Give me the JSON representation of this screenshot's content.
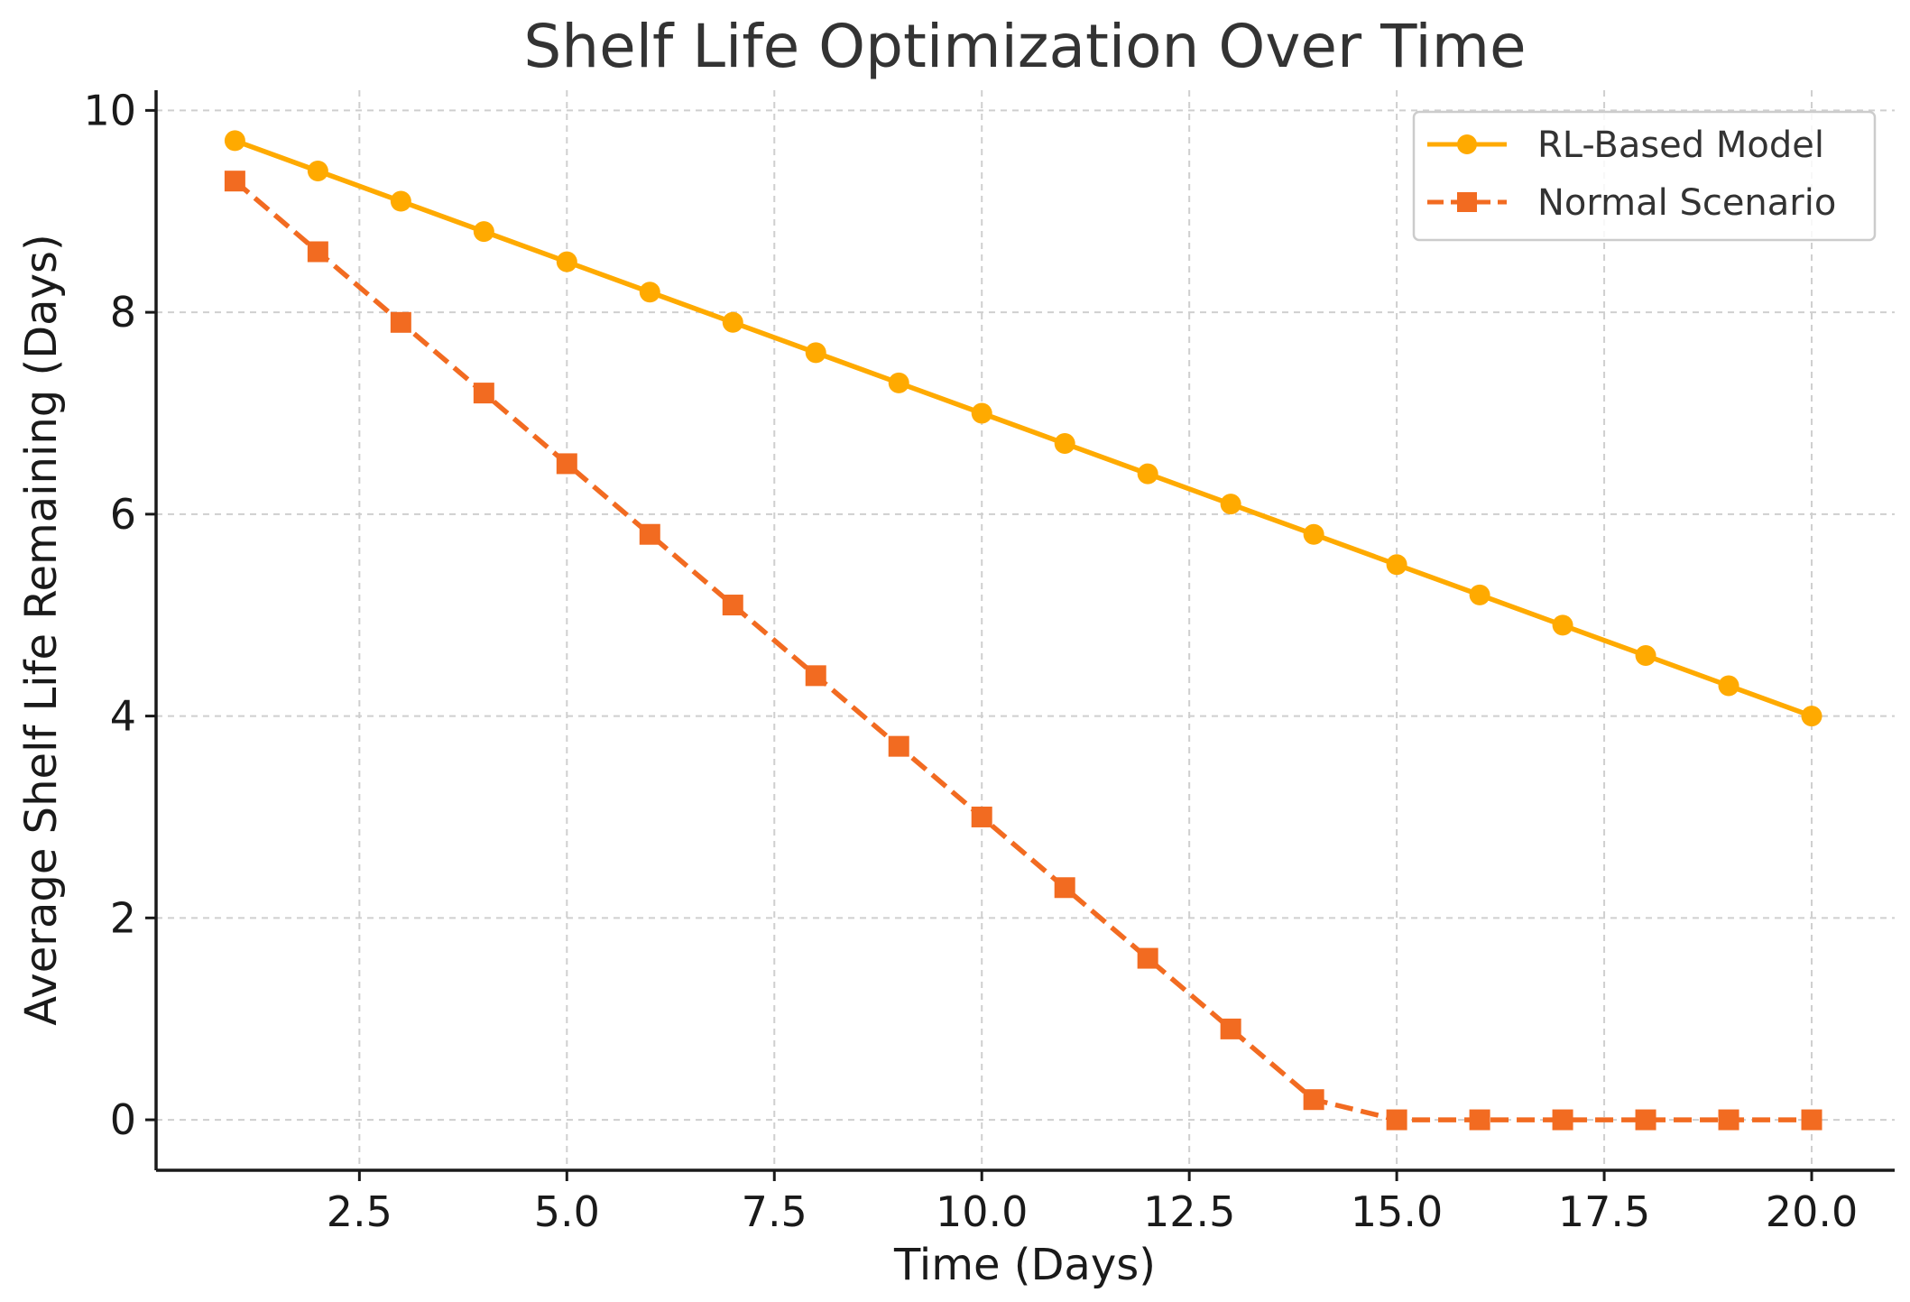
{
  "chart_data": {
    "type": "line",
    "title": "Shelf Life Optimization Over Time",
    "xlabel": "Time (Days)",
    "ylabel": "Average Shelf Life Remaining (Days)",
    "x": [
      1,
      2,
      3,
      4,
      5,
      6,
      7,
      8,
      9,
      10,
      11,
      12,
      13,
      14,
      15,
      16,
      17,
      18,
      19,
      20
    ],
    "xlim": [
      0.05,
      21.0
    ],
    "ylim": [
      -0.5,
      10.2
    ],
    "x_ticks": [
      2.5,
      5.0,
      7.5,
      10.0,
      12.5,
      15.0,
      17.5,
      20.0
    ],
    "x_tick_labels": [
      "2.5",
      "5.0",
      "7.5",
      "10.0",
      "12.5",
      "15.0",
      "17.5",
      "20.0"
    ],
    "y_ticks": [
      0,
      2,
      4,
      6,
      8,
      10
    ],
    "y_tick_labels": [
      "0",
      "2",
      "4",
      "6",
      "8",
      "10"
    ],
    "grid": true,
    "legend_position": "top-right",
    "series": [
      {
        "name": "RL-Based Model",
        "color": "#FFAA00",
        "marker": "circle",
        "line_style": "solid",
        "values": [
          9.7,
          9.4,
          9.1,
          8.8,
          8.5,
          8.2,
          7.9,
          7.6,
          7.3,
          7.0,
          6.7,
          6.4,
          6.1,
          5.8,
          5.5,
          5.2,
          4.9,
          4.6,
          4.3,
          4.0
        ]
      },
      {
        "name": "Normal Scenario",
        "color": "#F26B21",
        "marker": "square",
        "line_style": "dashed",
        "values": [
          9.3,
          8.6,
          7.9,
          7.2,
          6.5,
          5.8,
          5.1,
          4.4,
          3.7,
          3.0,
          2.3,
          1.6,
          0.9,
          0.2,
          0.0,
          0.0,
          0.0,
          0.0,
          0.0,
          0.0
        ]
      }
    ]
  }
}
